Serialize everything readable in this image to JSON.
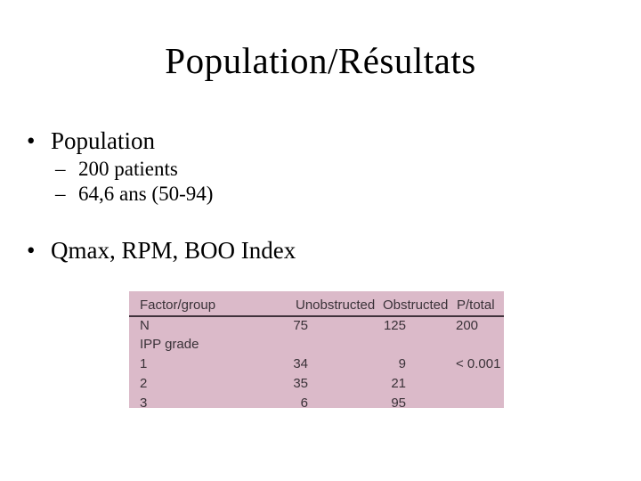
{
  "slide": {
    "title": "Population/Résultats",
    "bullets": [
      {
        "marker": "•",
        "text": "Population"
      },
      {
        "marker": "–",
        "text": "200 patients"
      },
      {
        "marker": "–",
        "text": "64,6 ans (50-94)"
      },
      {
        "marker": "•",
        "text": "Qmax, RPM, BOO Index"
      }
    ]
  },
  "table": {
    "columns": [
      "Factor/group",
      "Unobstructed",
      "Obstructed",
      "P/total"
    ],
    "rows": [
      {
        "factor": "N",
        "unobstructed": "75",
        "obstructed": "125",
        "p_total": "200"
      },
      {
        "factor": "IPP grade",
        "unobstructed": "",
        "obstructed": "",
        "p_total": ""
      },
      {
        "factor": "1",
        "unobstructed": "34",
        "obstructed": "9",
        "p_total": "< 0.001"
      },
      {
        "factor": "2",
        "unobstructed": "35",
        "obstructed": "21",
        "p_total": ""
      },
      {
        "factor": "3",
        "unobstructed": "6",
        "obstructed": "95",
        "p_total": ""
      }
    ],
    "colors": {
      "table_background": "#dbbac9",
      "header_rule": "#40323c",
      "table_text": "#3a3238"
    }
  }
}
